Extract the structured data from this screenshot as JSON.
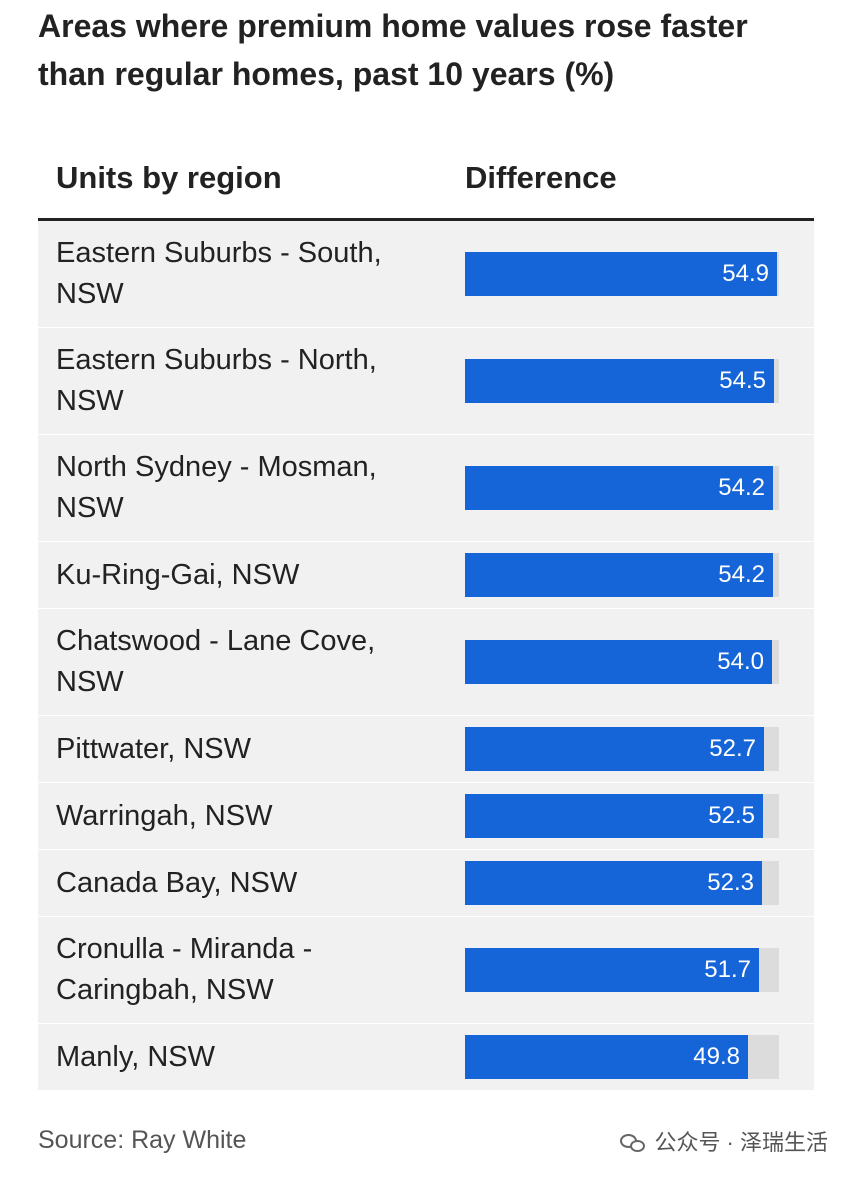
{
  "chart_data": {
    "type": "bar",
    "orientation": "horizontal",
    "title": "Areas where premium home values rose faster than regular homes, past 10 years (%)",
    "column_headers": {
      "category": "Units by region",
      "value": "Difference"
    },
    "categories": [
      "Eastern Suburbs - South, NSW",
      "Eastern Suburbs - North, NSW",
      "North Sydney - Mosman, NSW",
      "Ku-Ring-Gai, NSW",
      "Chatswood - Lane Cove, NSW",
      "Pittwater, NSW",
      "Warringah, NSW",
      "Canada Bay, NSW",
      "Cronulla - Miranda - Caringbah, NSW",
      "Manly, NSW"
    ],
    "values": [
      54.9,
      54.5,
      54.2,
      54.2,
      54.0,
      52.7,
      52.5,
      52.3,
      51.7,
      49.8
    ],
    "value_labels": [
      "54.9",
      "54.5",
      "54.2",
      "54.2",
      "54.0",
      "52.7",
      "52.5",
      "52.3",
      "51.7",
      "49.8"
    ],
    "source": "Source: Ray White",
    "colors": {
      "bar": "#1565d8",
      "track": "#dcdcdc",
      "row_background": "#f1f1f1"
    },
    "grid": false,
    "legend": "none"
  },
  "watermark": {
    "text": "公众号 · 泽瑞生活",
    "icon": "wechat-icon"
  }
}
